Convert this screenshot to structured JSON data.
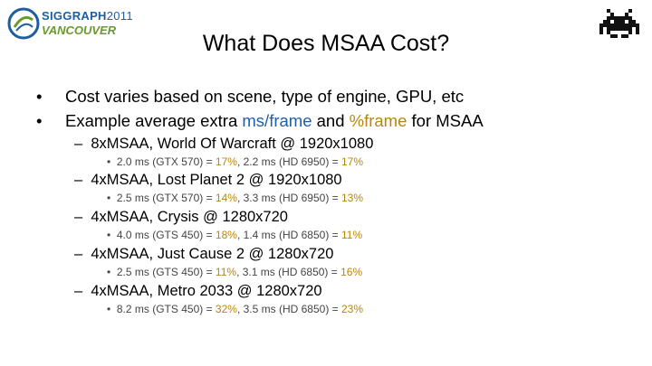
{
  "logo": {
    "brand": "SIGGRAPH",
    "year": "2011",
    "city": "VANCOUVER"
  },
  "title": "What Does MSAA Cost?",
  "bullets": [
    {
      "marker": "•",
      "text": "Cost varies based on scene, type of engine, GPU, etc"
    },
    {
      "marker": "•",
      "pre": "Example average extra ",
      "blue": "ms/frame",
      "mid": " and ",
      "orange": "%frame",
      "post": " for MSAA"
    }
  ],
  "items": [
    {
      "dash": "–",
      "heading": "8xMSAA, World Of Warcraft @ 1920x1080",
      "detail": {
        "marker": "•",
        "a": "2.0 ms (GTX 570) = ",
        "pa": "17%",
        "b": ", 2.2 ms (HD 6950) = ",
        "pb": "17%"
      }
    },
    {
      "dash": "–",
      "heading": "4xMSAA, Lost Planet 2 @ 1920x1080",
      "detail": {
        "marker": "•",
        "a": "2.5 ms (GTX 570) = ",
        "pa": "14%",
        "b": ", 3.3 ms (HD 6950) = ",
        "pb": "13%"
      }
    },
    {
      "dash": "–",
      "heading": "4xMSAA, Crysis @ 1280x720",
      "detail": {
        "marker": "•",
        "a": "4.0 ms (GTS 450) = ",
        "pa": "18%",
        "b": ", 1.4 ms (HD 6850) = ",
        "pb": "11%"
      }
    },
    {
      "dash": "–",
      "heading": "4xMSAA, Just Cause 2 @ 1280x720",
      "detail": {
        "marker": "•",
        "a": "2.5 ms (GTS 450) = ",
        "pa": "11%",
        "b": ", 3.1 ms (HD 6850) = ",
        "pb": "16%"
      }
    },
    {
      "dash": "–",
      "heading": "4xMSAA, Metro 2033 @ 1280x720",
      "detail": {
        "marker": "•",
        "a": "8.2 ms (GTS 450) = ",
        "pa": "32%",
        "b": ", 3.5 ms (HD 6850) = ",
        "pb": "23%"
      }
    }
  ],
  "colors": {
    "blue": "#1f5fa8",
    "orange": "#b8860b"
  }
}
